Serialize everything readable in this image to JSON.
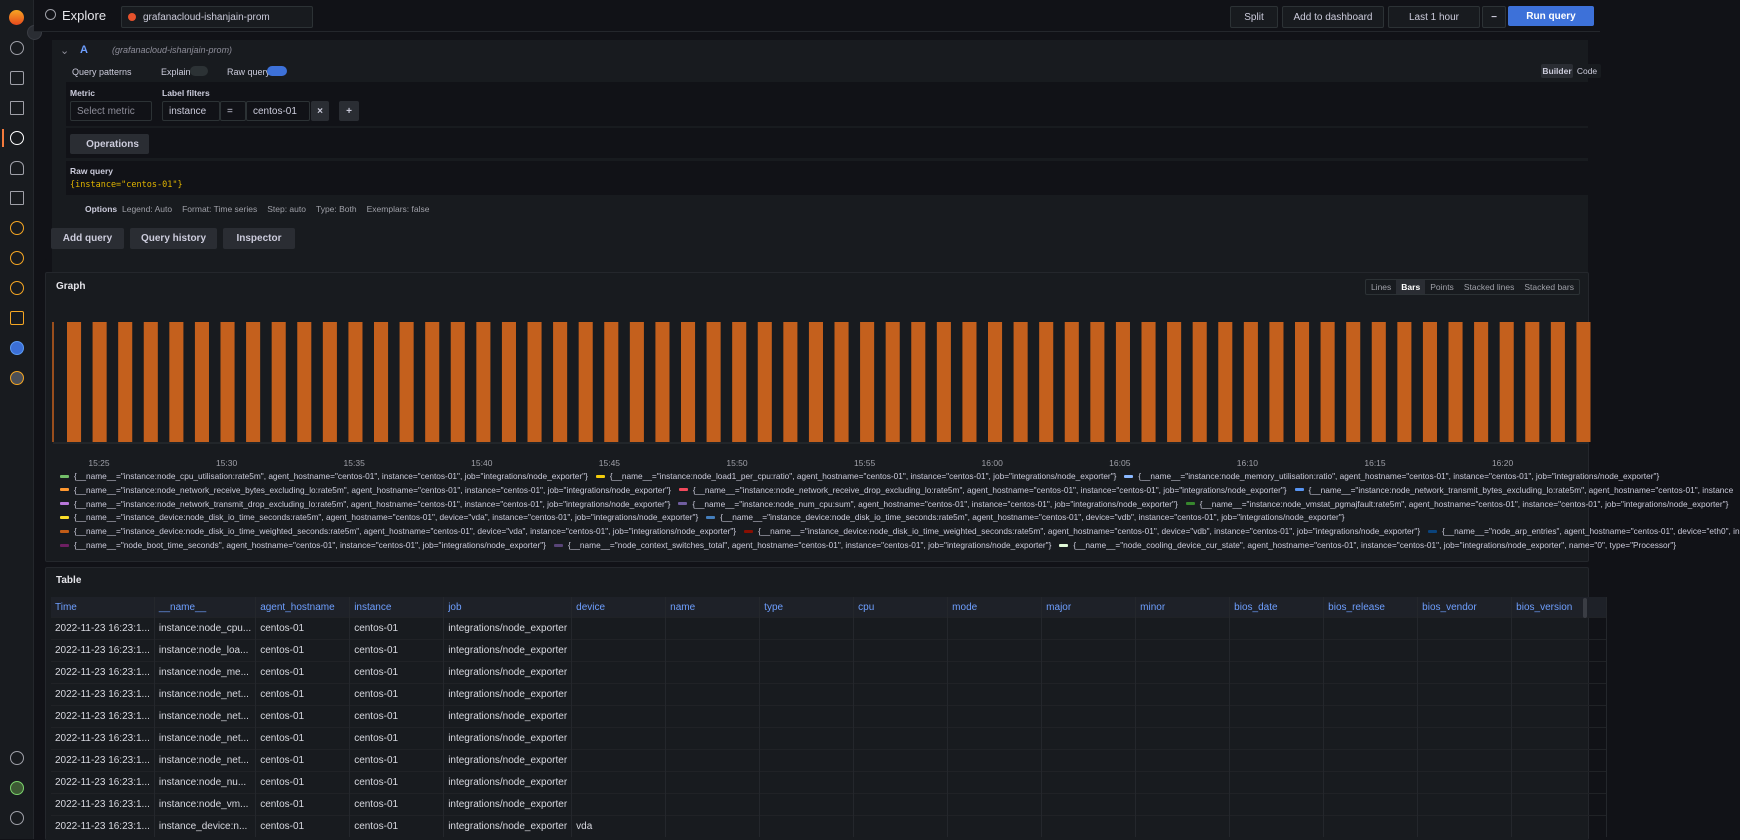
{
  "header": {
    "title": "Explore",
    "datasource": "grafanacloud-ishanjain-prom",
    "split": "Split",
    "add_to_dashboard": "Add to dashboard",
    "time_range": "Last 1 hour",
    "run_query": "Run query"
  },
  "query": {
    "ref": "A",
    "datasource_hint": "(grafanacloud-ishanjain-prom)",
    "query_patterns": "Query patterns",
    "explain": "Explain",
    "raw_query_toggle": "Raw query",
    "builder": "Builder",
    "code": "Code",
    "metric_label": "Metric",
    "metric_placeholder": "Select metric",
    "label_filters": "Label filters",
    "filter_label": "instance",
    "filter_op": "=",
    "filter_value": "centos-01",
    "operations": "Operations",
    "raw_query_title": "Raw query",
    "raw_query": "{instance=\"centos-01\"}",
    "options": "Options",
    "options_summary": [
      "Legend: Auto",
      "Format: Time series",
      "Step: auto",
      "Type: Both",
      "Exemplars: false"
    ]
  },
  "actions": [
    "Add query",
    "Query history",
    "Inspector"
  ],
  "graph": {
    "title": "Graph",
    "modes": [
      "Lines",
      "Bars",
      "Points",
      "Stacked lines",
      "Stacked bars"
    ],
    "active_mode": "Bars",
    "bar_color": "#c4601d",
    "xticks": [
      "15:25",
      "15:30",
      "15:35",
      "15:40",
      "15:45",
      "15:50",
      "15:55",
      "16:00",
      "16:05",
      "16:10",
      "16:15",
      "16:20"
    ],
    "legend": [
      [
        {
          "color": "#73bf69",
          "label": "{__name__=\"instance:node_cpu_utilisation:rate5m\", agent_hostname=\"centos-01\", instance=\"centos-01\", job=\"integrations/node_exporter\"}"
        },
        {
          "color": "#f2cc0c",
          "label": "{__name__=\"instance:node_load1_per_cpu:ratio\", agent_hostname=\"centos-01\", instance=\"centos-01\", job=\"integrations/node_exporter\"}"
        },
        {
          "color": "#8ab8ff",
          "label": "{__name__=\"instance:node_memory_utilisation:ratio\", agent_hostname=\"centos-01\", instance=\"centos-01\", job=\"integrations/node_exporter\"}"
        }
      ],
      [
        {
          "color": "#ff9830",
          "label": "{__name__=\"instance:node_network_receive_bytes_excluding_lo:rate5m\", agent_hostname=\"centos-01\", instance=\"centos-01\", job=\"integrations/node_exporter\"}"
        },
        {
          "color": "#f2495c",
          "label": "{__name__=\"instance:node_network_receive_drop_excluding_lo:rate5m\", agent_hostname=\"centos-01\", instance=\"centos-01\", job=\"integrations/node_exporter\"}"
        },
        {
          "color": "#5794f2",
          "label": "{__name__=\"instance:node_network_transmit_bytes_excluding_lo:rate5m\", agent_hostname=\"centos-01\", instance"
        }
      ],
      [
        {
          "color": "#b877d9",
          "label": "{__name__=\"instance:node_network_transmit_drop_excluding_lo:rate5m\", agent_hostname=\"centos-01\", instance=\"centos-01\", job=\"integrations/node_exporter\"}"
        },
        {
          "color": "#705da0",
          "label": "{__name__=\"instance:node_num_cpu:sum\", agent_hostname=\"centos-01\", instance=\"centos-01\", job=\"integrations/node_exporter\"}"
        },
        {
          "color": "#37872d",
          "label": "{__name__=\"instance:node_vmstat_pgmajfault:rate5m\", agent_hostname=\"centos-01\", instance=\"centos-01\", job=\"integrations/node_exporter\"}"
        }
      ],
      [
        {
          "color": "#fade2a",
          "label": "{__name__=\"instance_device:node_disk_io_time_seconds:rate5m\", agent_hostname=\"centos-01\", device=\"vda\", instance=\"centos-01\", job=\"integrations/node_exporter\"}"
        },
        {
          "color": "#447ebc",
          "label": "{__name__=\"instance_device:node_disk_io_time_seconds:rate5m\", agent_hostname=\"centos-01\", device=\"vdb\", instance=\"centos-01\", job=\"integrations/node_exporter\"}"
        }
      ],
      [
        {
          "color": "#c15c17",
          "label": "{__name__=\"instance_device:node_disk_io_time_weighted_seconds:rate5m\", agent_hostname=\"centos-01\", device=\"vda\", instance=\"centos-01\", job=\"integrations/node_exporter\"}"
        },
        {
          "color": "#890f02",
          "label": "{__name__=\"instance_device:node_disk_io_time_weighted_seconds:rate5m\", agent_hostname=\"centos-01\", device=\"vdb\", instance=\"centos-01\", job=\"integrations/node_exporter\"}"
        },
        {
          "color": "#0a437c",
          "label": "{__name__=\"node_arp_entries\", agent_hostname=\"centos-01\", device=\"eth0\", in"
        }
      ],
      [
        {
          "color": "#6d1f62",
          "label": "{__name__=\"node_boot_time_seconds\", agent_hostname=\"centos-01\", instance=\"centos-01\", job=\"integrations/node_exporter\"}"
        },
        {
          "color": "#584477",
          "label": "{__name__=\"node_context_switches_total\", agent_hostname=\"centos-01\", instance=\"centos-01\", job=\"integrations/node_exporter\"}"
        },
        {
          "color": "#e0f9d7",
          "label": "{__name__=\"node_cooling_device_cur_state\", agent_hostname=\"centos-01\", instance=\"centos-01\", job=\"integrations/node_exporter\", name=\"0\", type=\"Processor\"}"
        }
      ]
    ]
  },
  "table": {
    "title": "Table",
    "columns": [
      "Time",
      "__name__",
      "agent_hostname",
      "instance",
      "job",
      "device",
      "name",
      "type",
      "cpu",
      "mode",
      "major",
      "minor",
      "bios_date",
      "bios_release",
      "bios_vendor",
      "bios_version"
    ],
    "rows": [
      [
        "2022-11-23 16:23:1...",
        "instance:node_cpu...",
        "centos-01",
        "centos-01",
        "integrations/node_exporter"
      ],
      [
        "2022-11-23 16:23:1...",
        "instance:node_loa...",
        "centos-01",
        "centos-01",
        "integrations/node_exporter"
      ],
      [
        "2022-11-23 16:23:1...",
        "instance:node_me...",
        "centos-01",
        "centos-01",
        "integrations/node_exporter"
      ],
      [
        "2022-11-23 16:23:1...",
        "instance:node_net...",
        "centos-01",
        "centos-01",
        "integrations/node_exporter"
      ],
      [
        "2022-11-23 16:23:1...",
        "instance:node_net...",
        "centos-01",
        "centos-01",
        "integrations/node_exporter"
      ],
      [
        "2022-11-23 16:23:1...",
        "instance:node_net...",
        "centos-01",
        "centos-01",
        "integrations/node_exporter"
      ],
      [
        "2022-11-23 16:23:1...",
        "instance:node_net...",
        "centos-01",
        "centos-01",
        "integrations/node_exporter"
      ],
      [
        "2022-11-23 16:23:1...",
        "instance:node_nu...",
        "centos-01",
        "centos-01",
        "integrations/node_exporter"
      ],
      [
        "2022-11-23 16:23:1...",
        "instance:node_vm...",
        "centos-01",
        "centos-01",
        "integrations/node_exporter"
      ],
      [
        "2022-11-23 16:23:1...",
        "instance_device:n...",
        "centos-01",
        "centos-01",
        "integrations/node_exporter",
        "vda"
      ]
    ]
  }
}
